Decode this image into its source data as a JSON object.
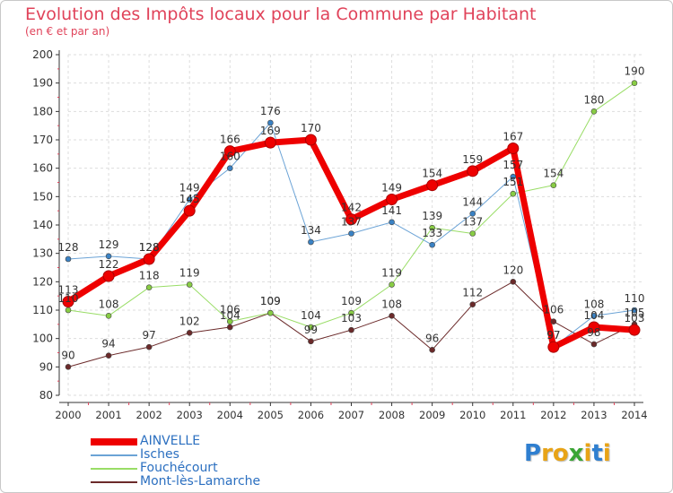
{
  "header": {
    "title": "Evolution des Impôts locaux pour la Commune par Habitant",
    "subtitle": "(en € et par an)"
  },
  "colors": {
    "title": "#e0435a",
    "legend_text": "#2b6fc0",
    "axis": "#333333",
    "tick_text": "#333333",
    "grid": "#dddddd",
    "axis_red_tick": "#e0435a"
  },
  "chart_data": {
    "type": "line",
    "x": [
      "2000",
      "2001",
      "2002",
      "2003",
      "2004",
      "2005",
      "2006",
      "2007",
      "2008",
      "2009",
      "2010",
      "2011",
      "2012",
      "2013",
      "2014"
    ],
    "ylim": [
      80,
      200
    ],
    "yticks": [
      80,
      90,
      100,
      110,
      120,
      130,
      140,
      150,
      160,
      170,
      180,
      190,
      200
    ],
    "grid": true,
    "legend_position": "bottom-left",
    "series": [
      {
        "name": "Mont-lès-Lamarche",
        "color": "#6b2a2a",
        "width": 1,
        "values": [
          90,
          94,
          97,
          102,
          104,
          109,
          99,
          103,
          108,
          96,
          112,
          120,
          106,
          98,
          105
        ]
      },
      {
        "name": "Fouchécourt",
        "color": "#99dd66",
        "marker_color": "#88cc44",
        "width": 1,
        "values": [
          110,
          108,
          118,
          119,
          106,
          109,
          104,
          109,
          119,
          139,
          137,
          151,
          154,
          180,
          190
        ]
      },
      {
        "name": "Isches",
        "color": "#6ba3d6",
        "marker_color": "#3a82c4",
        "width": 1,
        "values": [
          128,
          129,
          128,
          149,
          160,
          176,
          134,
          137,
          141,
          133,
          144,
          157,
          97,
          108,
          110
        ]
      },
      {
        "name": "AINVELLE",
        "color": "#ee0000",
        "width": 7,
        "values": [
          113,
          122,
          128,
          145,
          166,
          169,
          170,
          142,
          149,
          154,
          159,
          167,
          97,
          104,
          103
        ]
      }
    ]
  },
  "legend": {
    "items": [
      {
        "label": "AINVELLE",
        "color": "#ee0000",
        "thickness": 8
      },
      {
        "label": "Isches",
        "color": "#6ba3d6",
        "thickness": 2
      },
      {
        "label": "Fouchécourt",
        "color": "#99dd66",
        "thickness": 2
      },
      {
        "label": "Mont-lès-Lamarche",
        "color": "#6b2a2a",
        "thickness": 2
      }
    ]
  },
  "logo": {
    "letters": [
      "P",
      "r",
      "o",
      "x",
      "i",
      "t",
      "i"
    ],
    "colors": [
      "#2f7fd0",
      "#e8a316",
      "#e8a316",
      "#3aa535",
      "#e8a316",
      "#2f7fd0",
      "#e8a316"
    ]
  }
}
